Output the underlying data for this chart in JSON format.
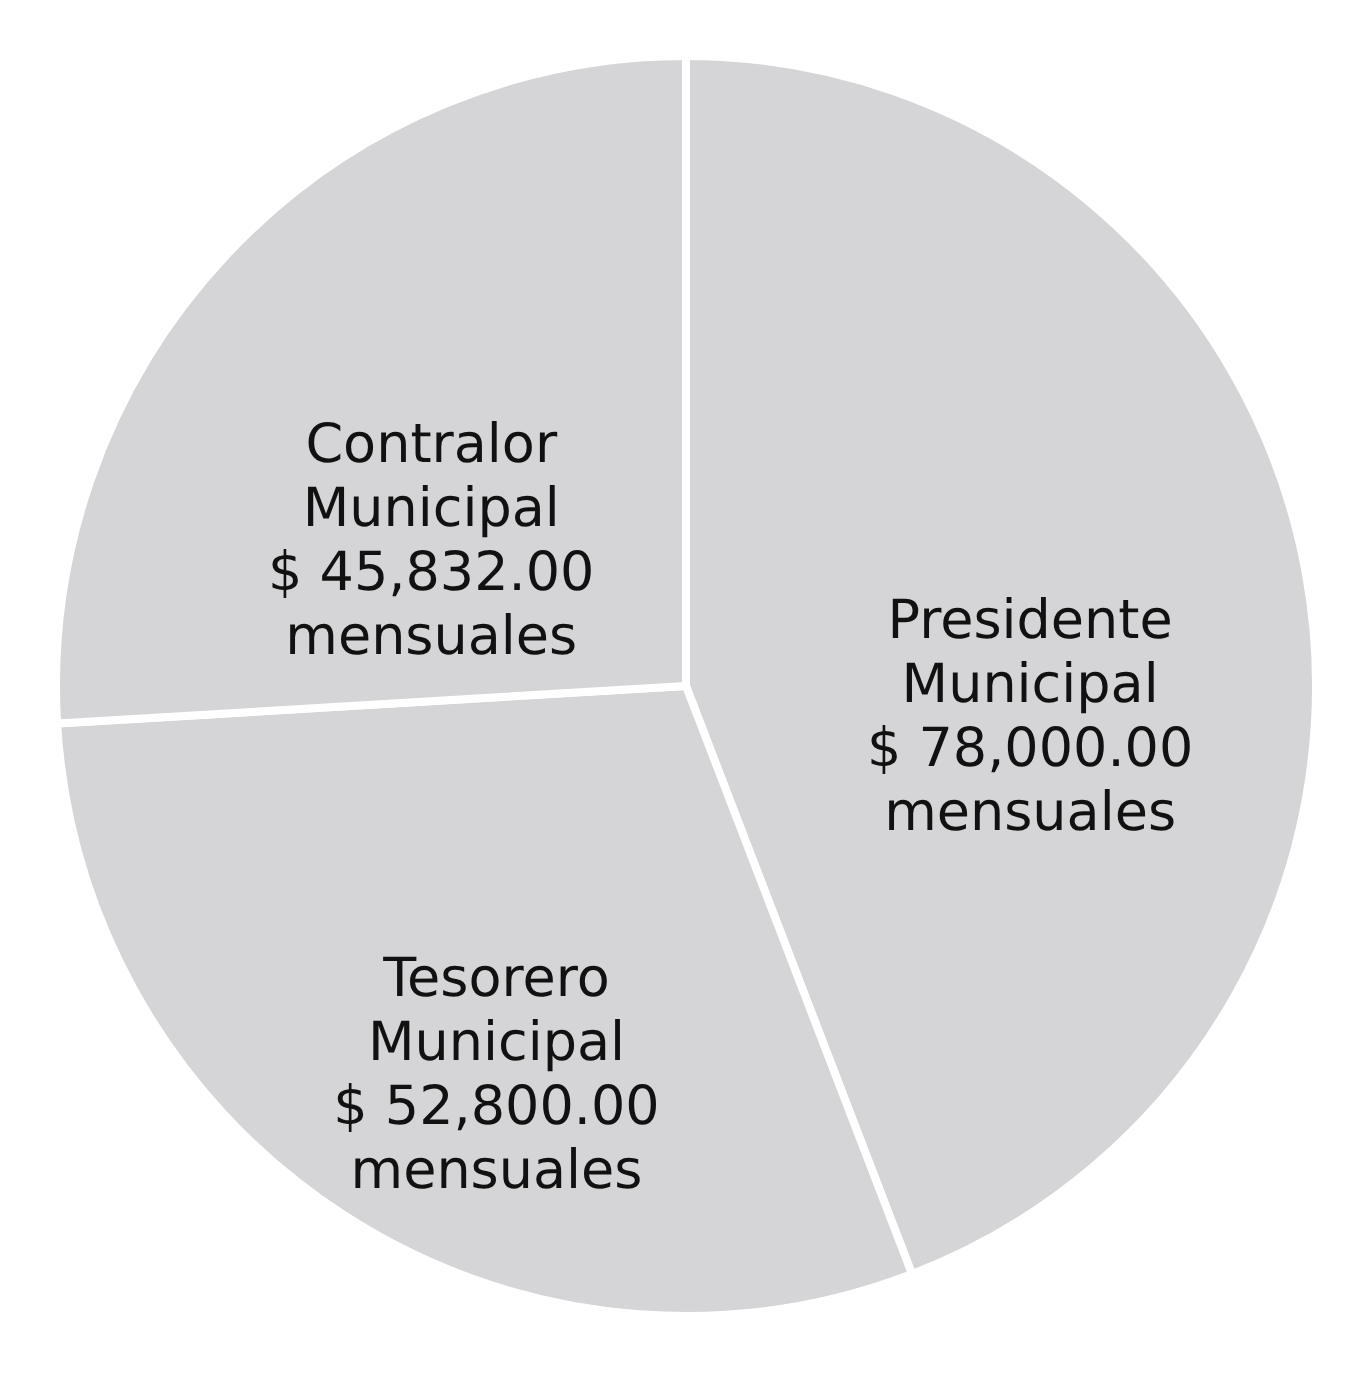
{
  "chart_data": {
    "type": "pie",
    "categories": [
      "Presidente Municipal",
      "Tesorero Municipal",
      "Contralor Municipal"
    ],
    "values": [
      78000,
      52800,
      45832
    ],
    "value_labels": [
      "$ 78,000.00 mensuales",
      "$ 52,800.00 mensuales",
      "$ 45,832.00 mensuales"
    ],
    "colors": [
      "#d5d5d7",
      "#d5d5d7",
      "#d5d5d7"
    ]
  }
}
